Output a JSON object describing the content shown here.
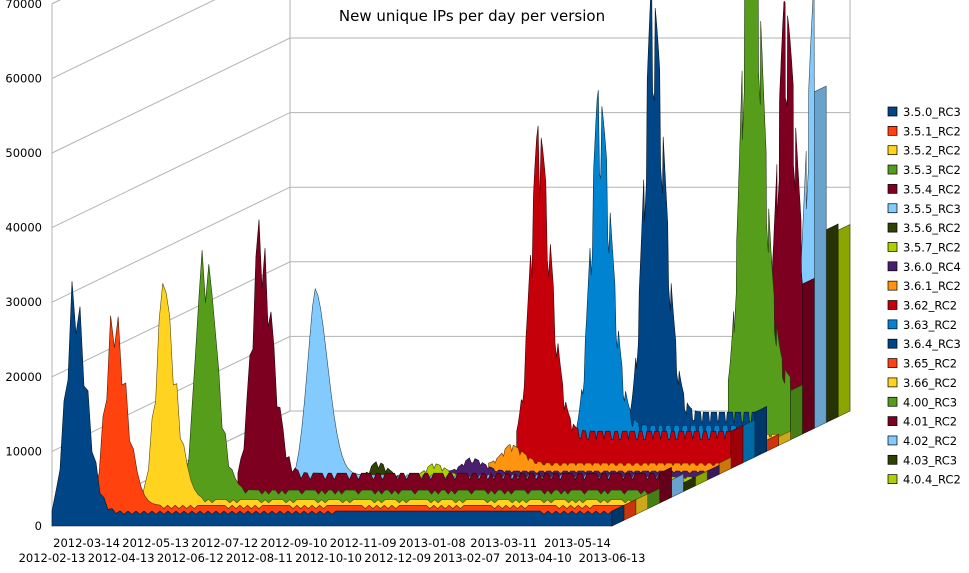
{
  "chart_data": {
    "type": "area",
    "title": "New unique IPs per day per version",
    "xlabel": "",
    "ylabel": "",
    "ylim": [
      0,
      70000
    ],
    "yticks": [
      0,
      10000,
      20000,
      30000,
      40000,
      50000,
      60000,
      70000
    ],
    "xticks_row1": [
      "2012-03-14",
      "2012-05-13",
      "2012-07-12",
      "2012-09-10",
      "2012-11-09",
      "2013-01-08",
      "2013-03-11",
      "2013-05-14"
    ],
    "xticks_row2": [
      "2012-02-13",
      "2012-04-13",
      "2012-06-12",
      "2012-08-11",
      "2012-10-10",
      "2012-12-09",
      "2013-02-07",
      "2013-04-10",
      "2013-06-13"
    ],
    "legend_position": "right",
    "grid": true,
    "three_d": true,
    "series": [
      {
        "name": "3.5.0_RC3",
        "color": "#004586",
        "start": "2012-02-13",
        "peak": 34000,
        "tail": 2000
      },
      {
        "name": "3.5.1_RC2",
        "color": "#ff420e",
        "start": "2012-03-08",
        "peak": 30000,
        "tail": 2000
      },
      {
        "name": "3.5.2_RC2",
        "color": "#ffd320",
        "start": "2012-04-10",
        "peak": 31000,
        "tail": 2000
      },
      {
        "name": "3.5.3_RC2",
        "color": "#579d1c",
        "start": "2012-05-05",
        "peak": 36000,
        "tail": 2500
      },
      {
        "name": "3.5.4_RC2",
        "color": "#7e0021",
        "start": "2012-06-12",
        "peak": 38000,
        "tail": 4000
      },
      {
        "name": "3.5.5_RC3",
        "color": "#83caff",
        "start": "2012-07-20",
        "peak": 28000,
        "tail": 3000
      },
      {
        "name": "3.5.6_RC2",
        "color": "#314004",
        "start": "2012-09-01",
        "peak": 4000,
        "tail": 1500
      },
      {
        "name": "3.5.7_RC2",
        "color": "#aecf00",
        "start": "2012-10-10",
        "peak": 3000,
        "tail": 1200
      },
      {
        "name": "3.6.0_RC4",
        "color": "#4b1f6f",
        "start": "2012-11-01",
        "peak": 3000,
        "tail": 1200
      },
      {
        "name": "3.6.1_RC2",
        "color": "#ff950e",
        "start": "2012-11-25",
        "peak": 4000,
        "tail": 1500
      },
      {
        "name": "3.62_RC2",
        "color": "#c5000b",
        "start": "2012-12-09",
        "peak": 46000,
        "tail": 5000
      },
      {
        "name": "3.63_RC2",
        "color": "#0084d1",
        "start": "2013-01-20",
        "peak": 50000,
        "tail": 5000
      },
      {
        "name": "3.6.4_RC3",
        "color": "#004586",
        "start": "2013-02-25",
        "peak": 63000,
        "tail": 6000
      },
      {
        "name": "3.65_RC2",
        "color": "#ff420e",
        "start": "2013-03-20",
        "peak": 4000,
        "tail": 1500
      },
      {
        "name": "3.66_RC2",
        "color": "#ffd320",
        "start": "2013-04-05",
        "peak": 3500,
        "tail": 1500
      },
      {
        "name": "4.00_RC3",
        "color": "#579d1c",
        "start": "2013-04-20",
        "peak": 80000,
        "tail": 8000
      },
      {
        "name": "4.01_RC2",
        "color": "#7e0021",
        "start": "2013-05-10",
        "peak": 58000,
        "tail": 7000
      },
      {
        "name": "4.02_RC2",
        "color": "#83caff",
        "start": "2013-05-25",
        "peak": 58000,
        "tail": 9000
      },
      {
        "name": "4.03_RC3",
        "color": "#314004",
        "start": "2013-06-05",
        "peak": 58000,
        "tail": 12000
      },
      {
        "name": "4.0.4_RC2",
        "color": "#aecf00",
        "start": "2013-06-13",
        "peak": 38000,
        "tail": 25000
      }
    ]
  }
}
